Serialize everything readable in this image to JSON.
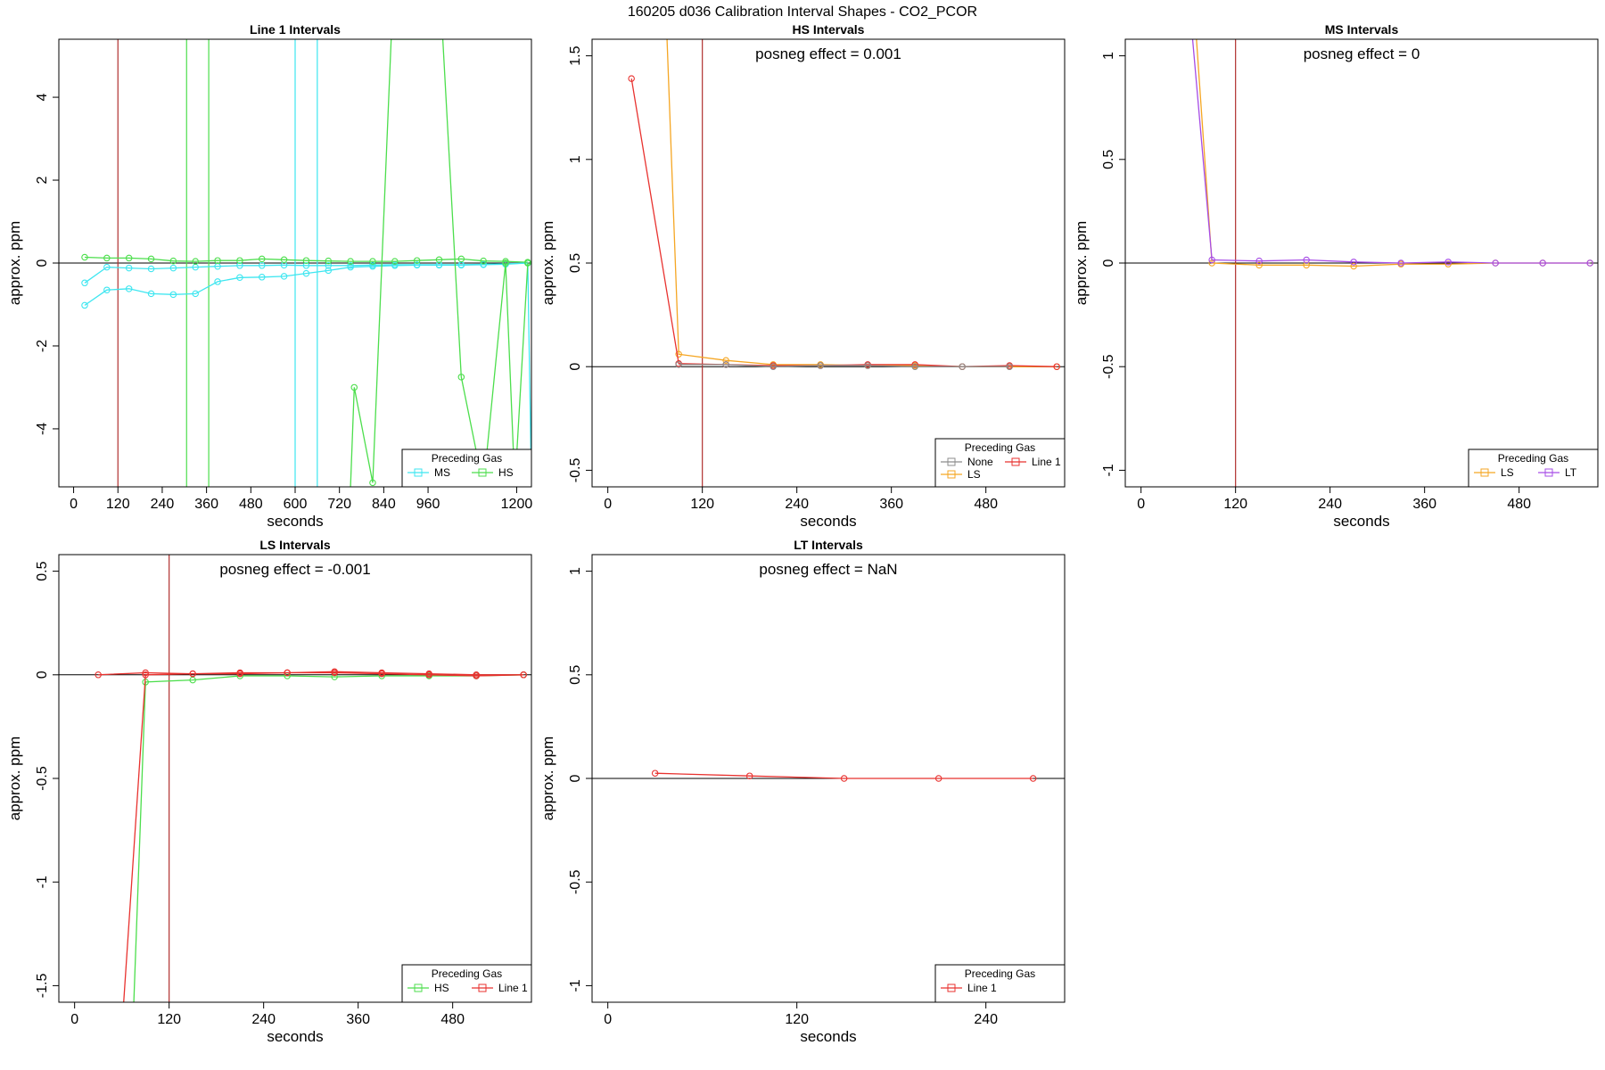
{
  "figure_title": "160205  d036   Calibration Interval Shapes - CO2_PCOR",
  "colors": {
    "MS": "#3ee6f0",
    "HS": "#4cde4c",
    "LS": "#f5a623",
    "LT": "#a64ce6",
    "Line 1": "#e8322f",
    "None": "#8c8c8c",
    "vline": "#b0302e",
    "axis": "#000000"
  },
  "chart_data": [
    {
      "type": "line",
      "title": "Line 1 Intervals",
      "xlabel": "seconds",
      "ylabel": "approx. ppm",
      "xlim": [
        -40,
        1240
      ],
      "ylim": [
        -5.4,
        5.4
      ],
      "xticks": [
        0,
        120,
        240,
        360,
        480,
        600,
        720,
        840,
        960,
        1200
      ],
      "yticks": [
        -4,
        -2,
        0,
        2,
        4
      ],
      "annotation": "",
      "vlines": [
        {
          "x": 120,
          "color": "vline"
        },
        {
          "x": 306,
          "color": "HS"
        },
        {
          "x": 366,
          "color": "HS"
        },
        {
          "x": 600,
          "color": "MS"
        },
        {
          "x": 660,
          "color": "MS"
        }
      ],
      "legend": {
        "title": "Preceding Gas",
        "position": "bottom-right",
        "entries": [
          "MS",
          "HS"
        ]
      },
      "series": [
        {
          "name": "MS",
          "color_key": "MS",
          "x": [
            30,
            90,
            150,
            210,
            270,
            330,
            390,
            450,
            510,
            570,
            630,
            690,
            750,
            810,
            870,
            930,
            990,
            1050,
            1110,
            1170,
            1230,
            1240
          ],
          "values": [
            -1.02,
            -0.65,
            -0.62,
            -0.74,
            -0.76,
            -0.74,
            -0.45,
            -0.35,
            -0.34,
            -0.32,
            -0.25,
            -0.18,
            -0.1,
            -0.08,
            -0.06,
            -0.05,
            -0.05,
            -0.05,
            -0.04,
            -0.03,
            0.0,
            -5.4
          ]
        },
        {
          "name": "MS",
          "color_key": "MS",
          "x": [
            30,
            90,
            150,
            210,
            270,
            330,
            390,
            450,
            510,
            570,
            630,
            690,
            750,
            810,
            870,
            930,
            990,
            1050,
            1110,
            1170,
            1230
          ],
          "values": [
            -0.48,
            -0.1,
            -0.12,
            -0.14,
            -0.12,
            -0.1,
            -0.08,
            -0.06,
            -0.06,
            -0.05,
            -0.06,
            -0.06,
            -0.06,
            -0.05,
            -0.04,
            -0.04,
            -0.04,
            -0.04,
            -0.03,
            -0.02,
            0.0
          ]
        },
        {
          "name": "HS",
          "color_key": "HS",
          "x": [
            30,
            90,
            150,
            210,
            270,
            330,
            390,
            450,
            510,
            570,
            630,
            690,
            750,
            810,
            870,
            930,
            990,
            1050,
            1110,
            1170,
            1230
          ],
          "values": [
            0.14,
            0.12,
            0.12,
            0.1,
            0.05,
            0.04,
            0.06,
            0.06,
            0.1,
            0.08,
            0.06,
            0.05,
            0.04,
            0.04,
            0.04,
            0.06,
            0.08,
            0.1,
            0.05,
            0.04,
            0.02
          ]
        },
        {
          "name": "HS",
          "color_key": "HS",
          "x": [
            750,
            760,
            810,
            860,
            1000,
            1050,
            1110,
            1170,
            1195,
            1230
          ],
          "values": [
            -5.4,
            -3.0,
            -5.3,
            5.4,
            5.4,
            -2.75,
            -5.4,
            0.0,
            -5.4,
            0.0
          ]
        }
      ]
    },
    {
      "type": "line",
      "title": "HS Intervals",
      "xlabel": "seconds",
      "ylabel": "approx. ppm",
      "xlim": [
        -20,
        580
      ],
      "ylim": [
        -0.58,
        1.58
      ],
      "xticks": [
        0,
        120,
        240,
        360,
        480
      ],
      "yticks": [
        -0.5,
        0.0,
        0.5,
        1.0,
        1.5
      ],
      "annotation": "posneg effect = 0.001",
      "vlines": [
        {
          "x": 120,
          "color": "vline"
        }
      ],
      "legend": {
        "title": "Preceding Gas",
        "position": "bottom-right",
        "entries": [
          "None",
          "Line 1",
          "LS"
        ]
      },
      "series": [
        {
          "name": "LS",
          "color_key": "LS",
          "x": [
            75,
            90,
            150,
            210,
            270,
            330,
            390,
            450,
            510,
            570
          ],
          "values": [
            1.6,
            0.06,
            0.03,
            0.01,
            0.01,
            0.005,
            0.005,
            0.0,
            0.0,
            0.0
          ]
        },
        {
          "name": "Line 1",
          "color_key": "Line 1",
          "x": [
            30,
            90,
            150,
            210,
            270,
            330,
            390,
            450,
            510,
            570
          ],
          "values": [
            1.39,
            0.015,
            0.01,
            0.005,
            0.005,
            0.01,
            0.01,
            0.0,
            0.005,
            0.0
          ]
        },
        {
          "name": "None",
          "color_key": "None",
          "x": [
            90,
            150,
            210,
            270,
            330,
            390,
            450,
            510
          ],
          "values": [
            0.01,
            0.01,
            0.0,
            0.005,
            0.005,
            0.0,
            0.0,
            0.0
          ]
        }
      ]
    },
    {
      "type": "line",
      "title": "MS Intervals",
      "xlabel": "seconds",
      "ylabel": "approx. ppm",
      "xlim": [
        -20,
        580
      ],
      "ylim": [
        -1.08,
        1.08
      ],
      "xticks": [
        0,
        120,
        240,
        360,
        480
      ],
      "yticks": [
        -1.0,
        -0.5,
        0.0,
        0.5,
        1.0
      ],
      "annotation": "posneg effect = 0",
      "vlines": [
        {
          "x": 120,
          "color": "vline"
        }
      ],
      "legend": {
        "title": "Preceding Gas",
        "position": "bottom-right",
        "entries": [
          "LS",
          "LT"
        ]
      },
      "series": [
        {
          "name": "LS",
          "color_key": "LS",
          "x": [
            70,
            90,
            150,
            210,
            270,
            330,
            390,
            450,
            510,
            570
          ],
          "values": [
            1.1,
            0.0,
            -0.01,
            -0.01,
            -0.015,
            -0.005,
            -0.005,
            0.0,
            0.0,
            0.0
          ]
        },
        {
          "name": "LT",
          "color_key": "LT",
          "x": [
            65,
            90,
            150,
            210,
            270,
            330,
            390,
            450,
            510,
            570
          ],
          "values": [
            1.1,
            0.015,
            0.01,
            0.015,
            0.005,
            0.0,
            0.005,
            0.0,
            0.0,
            0.0
          ]
        }
      ]
    },
    {
      "type": "line",
      "title": "LS Intervals",
      "xlabel": "seconds",
      "ylabel": "approx. ppm",
      "xlim": [
        -20,
        580
      ],
      "ylim": [
        -1.58,
        0.58
      ],
      "xticks": [
        0,
        120,
        240,
        360,
        480
      ],
      "yticks": [
        -1.5,
        -1.0,
        -0.5,
        0.0,
        0.5
      ],
      "annotation": "posneg effect = -0.001",
      "vlines": [
        {
          "x": 120,
          "color": "vline"
        }
      ],
      "legend": {
        "title": "Preceding Gas",
        "position": "bottom-right",
        "entries": [
          "HS",
          "Line 1"
        ]
      },
      "series": [
        {
          "name": "HS",
          "color_key": "HS",
          "x": [
            75,
            90,
            150,
            210,
            270,
            330,
            390,
            450,
            510,
            570
          ],
          "values": [
            -1.6,
            -0.035,
            -0.025,
            -0.005,
            -0.005,
            -0.01,
            -0.005,
            -0.005,
            -0.005,
            0.0
          ]
        },
        {
          "name": "Line 1",
          "color_key": "Line 1",
          "x": [
            62,
            90,
            150,
            210,
            270,
            330,
            390,
            450,
            510,
            570
          ],
          "values": [
            -1.6,
            0.0,
            0.005,
            0.005,
            0.01,
            0.01,
            0.005,
            0.0,
            -0.005,
            0.0
          ]
        },
        {
          "name": "Line 1",
          "color_key": "Line 1",
          "x": [
            30,
            90,
            150,
            210,
            270,
            330,
            390,
            450,
            510,
            570
          ],
          "values": [
            0.0,
            0.01,
            0.005,
            0.01,
            0.01,
            0.015,
            0.01,
            0.005,
            0.0,
            0.0
          ]
        }
      ]
    },
    {
      "type": "line",
      "title": "LT Intervals",
      "xlabel": "seconds",
      "ylabel": "approx. ppm",
      "xlim": [
        -10,
        290
      ],
      "ylim": [
        -1.08,
        1.08
      ],
      "xticks": [
        0,
        120,
        240
      ],
      "yticks": [
        -1.0,
        -0.5,
        0.0,
        0.5,
        1.0
      ],
      "annotation": "posneg effect = NaN",
      "vlines": [],
      "legend": {
        "title": "Preceding Gas",
        "position": "bottom-right",
        "entries": [
          "Line 1"
        ]
      },
      "series": [
        {
          "name": "Line 1",
          "color_key": "Line 1",
          "x": [
            30,
            90,
            150,
            210,
            270
          ],
          "values": [
            0.025,
            0.012,
            0.0,
            0.0,
            0.0
          ]
        }
      ]
    }
  ]
}
